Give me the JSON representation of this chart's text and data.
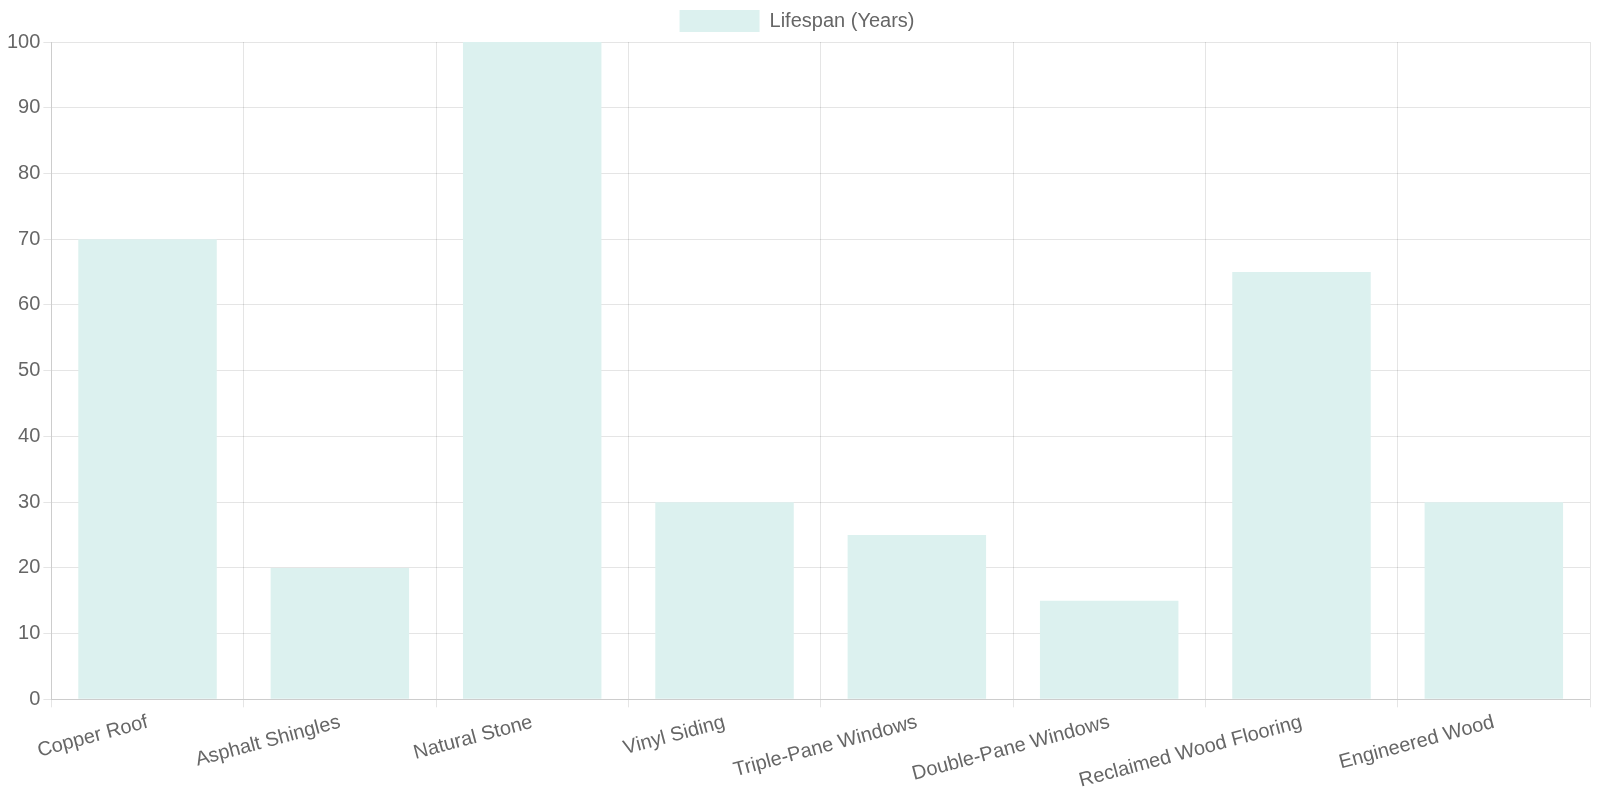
{
  "chart_data": {
    "type": "bar",
    "categories": [
      "Copper Roof",
      "Asphalt Shingles",
      "Natural Stone",
      "Vinyl Siding",
      "Triple-Pane Windows",
      "Double-Pane Windows",
      "Reclaimed Wood Flooring",
      "Engineered Wood"
    ],
    "series": [
      {
        "name": "Lifespan (Years)",
        "color": "#dcf1ef",
        "values": [
          70,
          20,
          100,
          30,
          25,
          15,
          65,
          30
        ]
      }
    ],
    "ylim": [
      0,
      100
    ],
    "yticks": [
      0,
      10,
      20,
      30,
      40,
      50,
      60,
      70,
      80,
      90,
      100
    ],
    "grid": true,
    "legend": "top"
  }
}
